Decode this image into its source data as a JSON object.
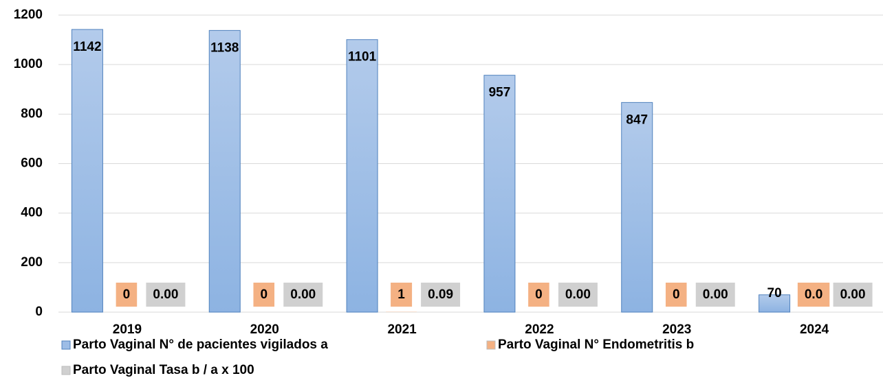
{
  "chart_data": {
    "type": "bar",
    "categories": [
      "2019",
      "2020",
      "2021",
      "2022",
      "2023",
      "2024"
    ],
    "series": [
      {
        "name": "Parto Vaginal N° de pacientes vigilados a",
        "color": "#9dbde6",
        "values": [
          1142,
          1138,
          1101,
          957,
          847,
          70
        ]
      },
      {
        "name": "Parto Vaginal N° Endometritis b",
        "color": "#f4b183",
        "values": [
          0,
          0,
          1,
          0,
          0,
          0
        ],
        "value_labels": [
          "0",
          "0",
          "1",
          "0",
          "0",
          "0.0"
        ]
      },
      {
        "name": "Parto Vaginal Tasa b / a x 100",
        "color": "#d0d0d0",
        "values": [
          0,
          0,
          0.09,
          0,
          0,
          0
        ],
        "value_labels": [
          "0.00",
          "0.00",
          "0.09",
          "0.00",
          "0.00",
          "0.00"
        ]
      }
    ],
    "ylim": [
      0,
      1200
    ],
    "yticks": [
      0,
      200,
      400,
      600,
      800,
      1000,
      1200
    ],
    "grid": true
  }
}
